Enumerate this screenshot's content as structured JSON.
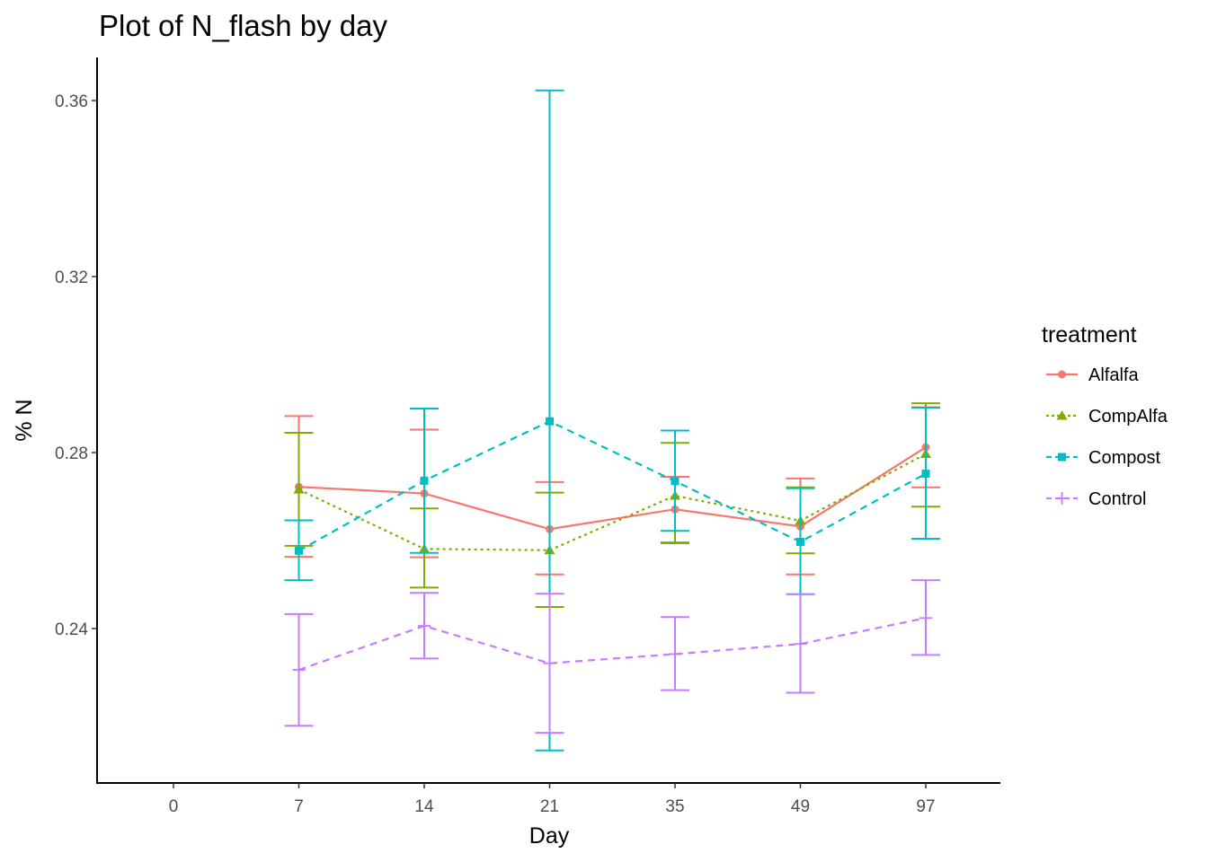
{
  "chart_data": {
    "type": "line",
    "title": "Plot of N_flash by day",
    "xlabel": "Day",
    "ylabel": "% N",
    "categories": [
      "0",
      "7",
      "14",
      "21",
      "35",
      "49",
      "97"
    ],
    "ylim": [
      0.2,
      0.37
    ],
    "yticks": [
      0.24,
      0.28,
      0.32,
      0.36
    ],
    "ytick_labels": [
      "0.24",
      "0.28",
      "0.32",
      "0.36"
    ],
    "grid": false,
    "legend": {
      "title": "treatment",
      "position": "right"
    },
    "series": [
      {
        "name": "Alfalfa",
        "color": "#f8766d",
        "marker": "circle",
        "dash": "solid",
        "x": [
          "7",
          "14",
          "21",
          "35",
          "49",
          "97"
        ],
        "values": [
          0.2722,
          0.2707,
          0.2626,
          0.2671,
          0.2632,
          0.2812
        ],
        "err_low": [
          0.2563,
          0.2562,
          0.2523,
          0.2596,
          0.2523,
          0.2721
        ],
        "err_high": [
          0.2883,
          0.2852,
          0.2733,
          0.2745,
          0.2741,
          0.2903
        ]
      },
      {
        "name": "CompAlfa",
        "color": "#7cae00",
        "marker": "triangle",
        "dash": "dotted",
        "x": [
          "7",
          "14",
          "21",
          "35",
          "49",
          "97"
        ],
        "values": [
          0.2716,
          0.2581,
          0.2578,
          0.2702,
          0.2645,
          0.2797
        ],
        "err_low": [
          0.2588,
          0.2493,
          0.2449,
          0.2594,
          0.2571,
          0.2677
        ],
        "err_high": [
          0.2845,
          0.2673,
          0.2709,
          0.2822,
          0.2721,
          0.2912
        ]
      },
      {
        "name": "Compost",
        "color": "#00bfc4",
        "marker": "square",
        "dash": "dashed",
        "x": [
          "7",
          "14",
          "21",
          "35",
          "49",
          "97"
        ],
        "values": [
          0.2577,
          0.2736,
          0.2871,
          0.2735,
          0.2597,
          0.2752
        ],
        "err_low": [
          0.251,
          0.2572,
          0.2123,
          0.2622,
          0.2478,
          0.2604
        ],
        "err_high": [
          0.2646,
          0.29,
          0.3623,
          0.285,
          0.2719,
          0.2902
        ]
      },
      {
        "name": "Control",
        "color": "#c77cff",
        "marker": "plus",
        "dash": "dashed",
        "x": [
          "7",
          "14",
          "21",
          "35",
          "49",
          "97"
        ],
        "values": [
          0.2306,
          0.2406,
          0.2321,
          0.2342,
          0.2365,
          0.2424
        ],
        "err_low": [
          0.2179,
          0.2332,
          0.2163,
          0.226,
          0.2254,
          0.234
        ],
        "err_high": [
          0.2433,
          0.2481,
          0.2479,
          0.2426,
          0.2478,
          0.251
        ]
      }
    ]
  }
}
